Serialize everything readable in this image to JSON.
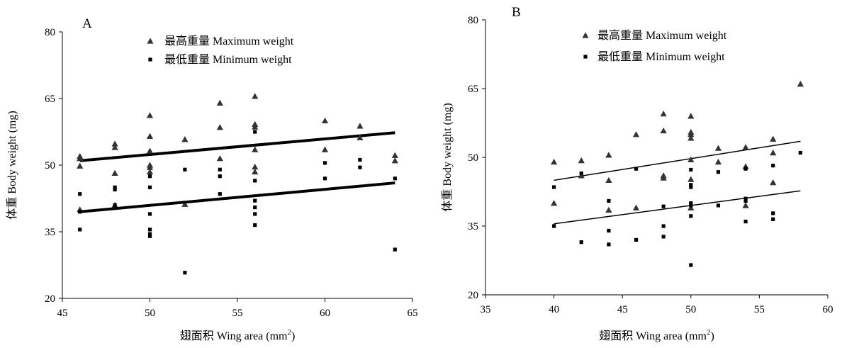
{
  "chart_data": [
    {
      "type": "scatter",
      "panel_label": "A",
      "xlabel_main": "翅面积  Wing area (mm",
      "xlabel_sup": "2",
      "xlabel_end": ")",
      "ylabel": "体重 Body weight (mg)",
      "xlim": [
        45,
        65
      ],
      "ylim": [
        20,
        80
      ],
      "xticks": [
        45,
        50,
        55,
        60,
        65
      ],
      "yticks": [
        20,
        35,
        50,
        65,
        80
      ],
      "legend_position": "top-center",
      "series": [
        {
          "name": "最高重量  Maximum weight",
          "marker": "triangle",
          "points": [
            [
              46,
              52
            ],
            [
              46,
              51.5
            ],
            [
              46,
              49.8
            ],
            [
              46,
              40
            ],
            [
              48,
              54.8
            ],
            [
              48,
              54
            ],
            [
              48,
              48.2
            ],
            [
              48,
              41
            ],
            [
              50,
              61.2
            ],
            [
              50,
              56.5
            ],
            [
              50,
              53.2
            ],
            [
              50,
              50
            ],
            [
              50,
              49.5
            ],
            [
              50,
              48.5
            ],
            [
              52,
              55.8
            ],
            [
              52,
              41.2
            ],
            [
              54,
              64
            ],
            [
              54,
              58.5
            ],
            [
              54,
              51.5
            ],
            [
              56,
              65.5
            ],
            [
              56,
              59.2
            ],
            [
              56,
              58.6
            ],
            [
              56,
              53.5
            ],
            [
              56,
              49.6
            ],
            [
              56,
              48.5
            ],
            [
              60,
              60
            ],
            [
              60,
              53.5
            ],
            [
              62,
              58.8
            ],
            [
              62,
              56.2
            ],
            [
              64,
              52.2
            ],
            [
              64,
              51
            ]
          ],
          "fit": [
            [
              46,
              51
            ],
            [
              64,
              57.3
            ]
          ]
        },
        {
          "name": "最低重量  Minimum weight",
          "marker": "square",
          "points": [
            [
              46,
              43.5
            ],
            [
              46,
              39.5
            ],
            [
              46,
              35.5
            ],
            [
              48,
              45
            ],
            [
              48,
              44.5
            ],
            [
              48,
              41
            ],
            [
              50,
              47.5
            ],
            [
              50,
              45
            ],
            [
              50,
              39
            ],
            [
              50,
              35.5
            ],
            [
              50,
              34.5
            ],
            [
              50,
              34
            ],
            [
              52,
              49
            ],
            [
              52,
              25.8
            ],
            [
              54,
              49
            ],
            [
              54,
              47.5
            ],
            [
              54,
              43.5
            ],
            [
              56,
              57.5
            ],
            [
              56,
              46.5
            ],
            [
              56,
              42
            ],
            [
              56,
              40.5
            ],
            [
              56,
              39
            ],
            [
              56,
              36.5
            ],
            [
              60,
              50.5
            ],
            [
              60,
              47
            ],
            [
              62,
              51.2
            ],
            [
              62,
              49.5
            ],
            [
              64,
              47
            ],
            [
              64,
              31
            ]
          ],
          "fit": [
            [
              46,
              39.5
            ],
            [
              64,
              46
            ]
          ]
        }
      ]
    },
    {
      "type": "scatter",
      "panel_label": "B",
      "xlabel_main": "翅面积 Wing area (mm",
      "xlabel_sup": "2",
      "xlabel_end": ")",
      "ylabel": "体重 Body weight (mg)",
      "xlim": [
        35,
        60
      ],
      "ylim": [
        20,
        80
      ],
      "xticks": [
        35,
        40,
        45,
        50,
        55,
        60
      ],
      "yticks": [
        20,
        35,
        50,
        65,
        80
      ],
      "legend_position": "top-center",
      "series": [
        {
          "name": "最高重量 Maximum weight",
          "marker": "triangle",
          "points": [
            [
              40,
              49
            ],
            [
              40,
              40
            ],
            [
              42,
              49.3
            ],
            [
              42,
              46
            ],
            [
              44,
              50.5
            ],
            [
              44,
              45
            ],
            [
              44,
              38.5
            ],
            [
              46,
              55
            ],
            [
              46,
              39
            ],
            [
              48,
              59.5
            ],
            [
              48,
              55.8
            ],
            [
              48,
              46
            ],
            [
              48,
              45.5
            ],
            [
              50,
              59
            ],
            [
              50,
              55.5
            ],
            [
              50,
              55
            ],
            [
              50,
              54.2
            ],
            [
              50,
              49.5
            ],
            [
              50,
              45.2
            ],
            [
              50,
              39
            ],
            [
              52,
              52
            ],
            [
              52,
              49
            ],
            [
              54,
              52.2
            ],
            [
              54,
              48
            ],
            [
              54,
              39.5
            ],
            [
              56,
              54
            ],
            [
              56,
              51
            ],
            [
              56,
              44.5
            ],
            [
              58,
              66
            ]
          ],
          "fit": [
            [
              40,
              45
            ],
            [
              58,
              53.5
            ]
          ]
        },
        {
          "name": "最低重量 Minimum weight",
          "marker": "square",
          "points": [
            [
              40,
              43.5
            ],
            [
              40,
              35
            ],
            [
              42,
              46.5
            ],
            [
              42,
              31.5
            ],
            [
              44,
              40.5
            ],
            [
              44,
              34
            ],
            [
              44,
              31
            ],
            [
              46,
              47.5
            ],
            [
              46,
              32
            ],
            [
              48,
              39.3
            ],
            [
              48,
              35
            ],
            [
              48,
              32.7
            ],
            [
              50,
              47.3
            ],
            [
              50,
              44
            ],
            [
              50,
              43.5
            ],
            [
              50,
              40
            ],
            [
              50,
              39.5
            ],
            [
              50,
              37.2
            ],
            [
              50,
              26.5
            ],
            [
              52,
              46.8
            ],
            [
              52,
              39.5
            ],
            [
              54,
              47.5
            ],
            [
              54,
              41
            ],
            [
              54,
              40.5
            ],
            [
              54,
              36
            ],
            [
              56,
              48.2
            ],
            [
              56,
              37.8
            ],
            [
              56,
              36.5
            ],
            [
              58,
              51
            ]
          ],
          "fit": [
            [
              40,
              35.5
            ],
            [
              58,
              42.7
            ]
          ]
        }
      ]
    }
  ]
}
